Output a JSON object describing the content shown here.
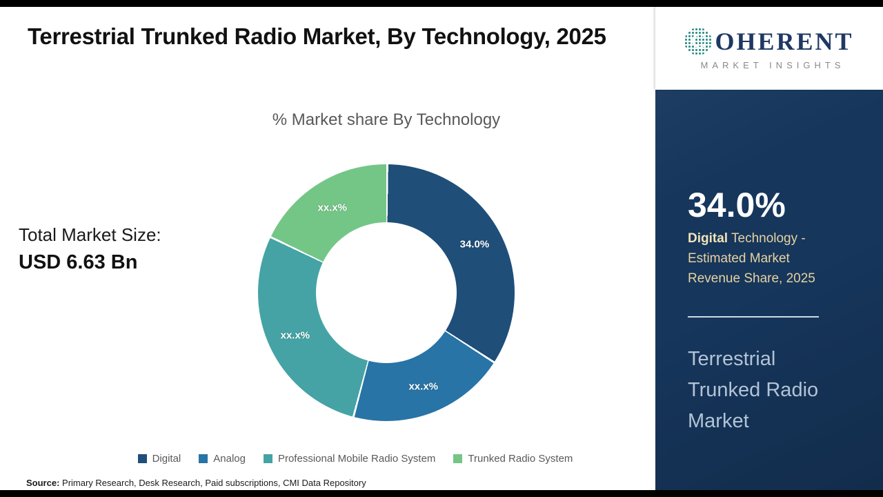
{
  "header": {
    "title": "Terrestrial Trunked Radio Market, By Technology, 2025"
  },
  "chart_data": {
    "type": "pie",
    "subtype": "donut",
    "title": "% Market share By Technology",
    "legend_position": "bottom",
    "segments": [
      {
        "label": "Digital",
        "value": 34.0,
        "display": "34.0%",
        "color": "#1f4e79"
      },
      {
        "label": "Analog",
        "value": 20.0,
        "display": "xx.x%",
        "color": "#2874a6"
      },
      {
        "label": "Professional Mobile Radio System",
        "value": 28.0,
        "display": "xx.x%",
        "color": "#45a3a5"
      },
      {
        "label": "Trunked Radio System",
        "value": 18.0,
        "display": "xx.x%",
        "color": "#74c687"
      }
    ]
  },
  "market_size": {
    "label": "Total Market Size:",
    "value": "USD 6.63 Bn"
  },
  "source": {
    "label": "Source:",
    "text": " Primary Research, Desk Research, Paid subscriptions, CMI Data Repository"
  },
  "sidebar": {
    "logo": {
      "brand_initial": "C",
      "brand_rest": "OHERENT",
      "tagline": "MARKET INSIGHTS"
    },
    "stat_value": "34.0%",
    "stat_bold": "Digital",
    "stat_rest": " Technology - Estimated Market Revenue Share, 2025",
    "footer_title": "Terrestrial Trunked Radio Market"
  }
}
